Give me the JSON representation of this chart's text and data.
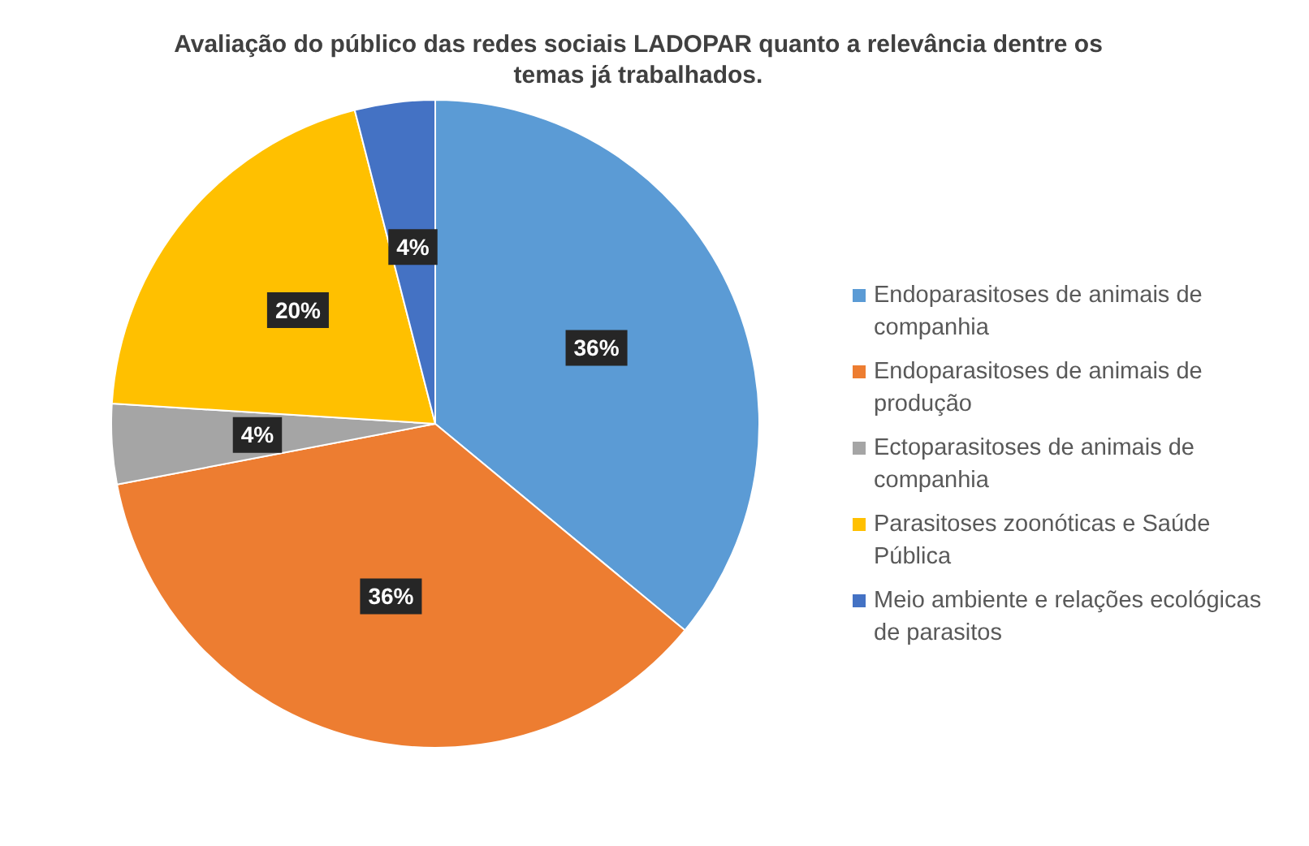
{
  "chart_data": {
    "type": "pie",
    "title": "Avaliação do público das redes sociais LADOPAR quanto a relevância dentre os temas já trabalhados.",
    "categories": [
      "Endoparasitoses de animais de companhia",
      "Endoparasitoses de animais de produção",
      "Ectoparasitoses de animais de companhia",
      "Parasitoses zoonóticas e Saúde Pública",
      "Meio ambiente e relações ecológicas de parasitos"
    ],
    "values": [
      36,
      36,
      4,
      20,
      4
    ],
    "value_labels": [
      "36%",
      "36%",
      "4%",
      "20%",
      "4%"
    ],
    "colors": [
      "#5b9bd5",
      "#ed7d31",
      "#a5a5a5",
      "#ffc000",
      "#4472c4"
    ],
    "legend": "right"
  }
}
